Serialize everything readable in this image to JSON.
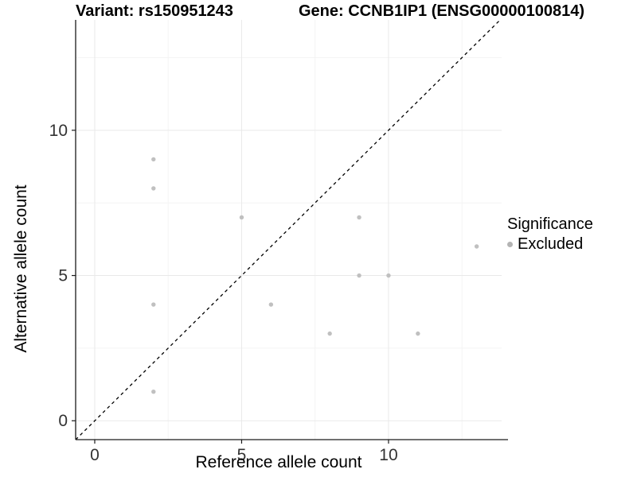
{
  "chart_data": {
    "type": "scatter",
    "title_left": "Variant: rs150951243",
    "title_right": "Gene: CCNB1IP1 (ENSG00000100814)",
    "xlabel": "Reference allele count",
    "ylabel": "Alternative allele count",
    "xlim": [
      -0.65,
      13.85
    ],
    "ylim": [
      -0.65,
      13.8
    ],
    "x_ticks": [
      0,
      5,
      10
    ],
    "y_ticks": [
      0,
      5,
      10
    ],
    "x_minor_ticks": [
      2.5,
      7.5,
      12.5
    ],
    "y_minor_ticks": [
      2.5,
      7.5,
      12.5
    ],
    "grid": "major and minor gridlines, white background",
    "series": [
      {
        "name": "Excluded",
        "color": "#c0c0c0",
        "points": [
          [
            2,
            9
          ],
          [
            2,
            8
          ],
          [
            5,
            7
          ],
          [
            9,
            7
          ],
          [
            9,
            5
          ],
          [
            10,
            5
          ],
          [
            2,
            4
          ],
          [
            6,
            4
          ],
          [
            8,
            3
          ],
          [
            11,
            3
          ],
          [
            13,
            6
          ],
          [
            2,
            1
          ]
        ]
      }
    ],
    "reference_line": {
      "type": "identity y=x",
      "style": "dashed",
      "color": "#000000"
    },
    "legend": {
      "position": "right",
      "title": "Significance",
      "entries": [
        {
          "label": "Excluded",
          "color": "#b4b4b4"
        }
      ]
    },
    "colors": {
      "axis_line": "#1a1a1a",
      "tick_text": "#333333",
      "major_grid": "#e9e9e9",
      "minor_grid": "#f4f4f4"
    }
  }
}
